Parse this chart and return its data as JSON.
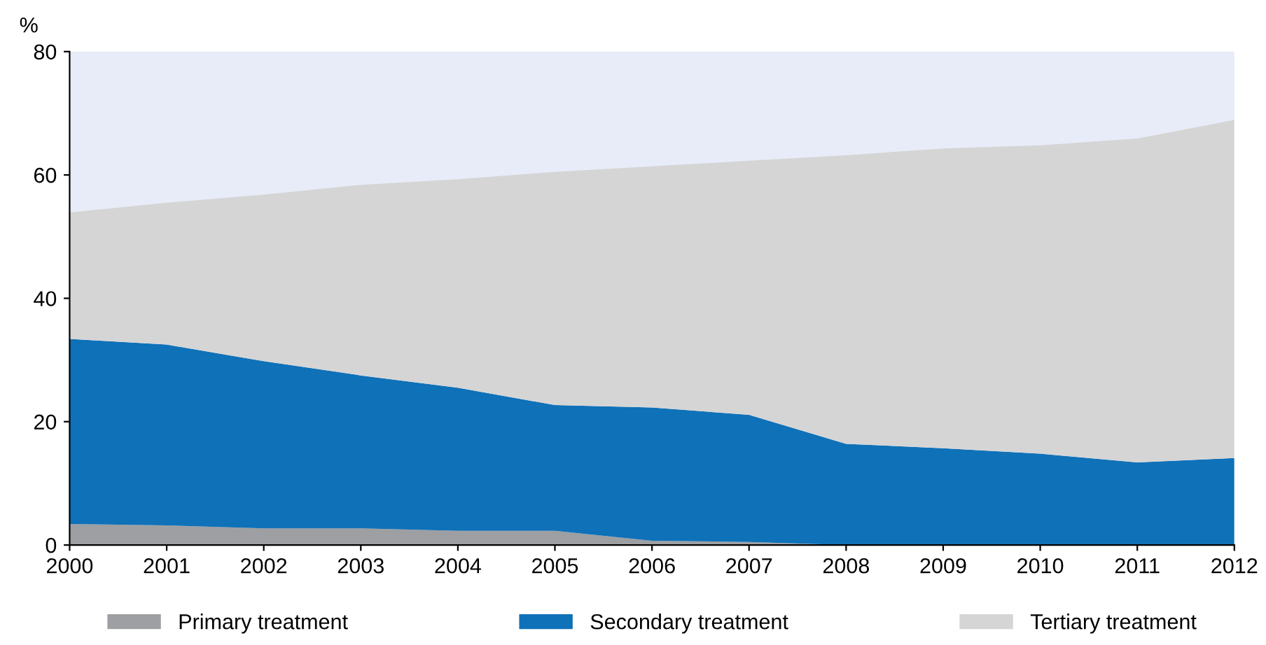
{
  "chart_data": {
    "type": "area",
    "stacked": true,
    "ylabel": "%",
    "x": [
      2000,
      2001,
      2002,
      2003,
      2004,
      2005,
      2006,
      2007,
      2008,
      2009,
      2010,
      2011,
      2012
    ],
    "series": [
      {
        "name": "Primary treatment",
        "color": "#9d9fa2",
        "values": [
          3.4,
          3.2,
          2.7,
          2.7,
          2.3,
          2.3,
          0.7,
          0.5,
          0,
          0,
          0,
          0,
          0
        ]
      },
      {
        "name": "Secondary treatment",
        "color": "#0f71b8",
        "values": [
          30.0,
          29.3,
          27.1,
          24.8,
          23.2,
          20.4,
          21.6,
          20.6,
          16.4,
          15.7,
          14.8,
          13.4,
          14.1
        ]
      },
      {
        "name": "Tertiary treatment",
        "color": "#d5d5d5",
        "values": [
          20.5,
          23.0,
          27.0,
          30.9,
          33.8,
          37.8,
          39.1,
          41.2,
          46.8,
          48.6,
          50.0,
          52.5,
          54.8
        ]
      }
    ],
    "xlim": [
      2000,
      2012
    ],
    "xticks": [
      2000,
      2001,
      2002,
      2003,
      2004,
      2005,
      2006,
      2007,
      2008,
      2009,
      2010,
      2011,
      2012
    ],
    "ylim": [
      0,
      80
    ],
    "yticks": [
      0,
      20,
      40,
      60,
      80
    ],
    "legend": "bottom"
  }
}
